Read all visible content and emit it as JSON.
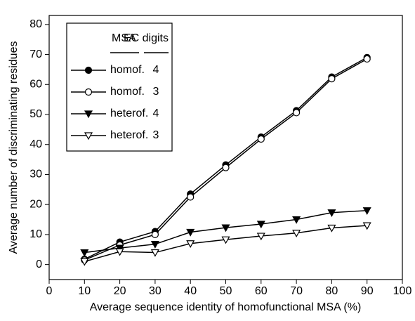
{
  "chart_data": {
    "type": "line",
    "x_label": "Average sequence identity of homofunctional MSA (%)",
    "y_label": "Average number of discriminating residues",
    "x": [
      10,
      20,
      30,
      40,
      50,
      60,
      70,
      80,
      90
    ],
    "legend_headers": [
      "MSA",
      "EC digits"
    ],
    "series": [
      {
        "name": "homof.",
        "ec_digits": 4,
        "color": "#000000",
        "marker": "circle",
        "filled": true,
        "values": [
          1.8,
          7.5,
          11,
          23.5,
          33.2,
          42.5,
          51.3,
          62.5,
          69
        ]
      },
      {
        "name": "homof.",
        "ec_digits": 3,
        "color": "#000000",
        "marker": "circle",
        "filled": false,
        "values": [
          1.5,
          6.5,
          10,
          22.5,
          32.3,
          41.8,
          50.6,
          61.9,
          68.5
        ]
      },
      {
        "name": "heterof.",
        "ec_digits": 4,
        "color": "#000000",
        "marker": "triangle-down",
        "filled": true,
        "values": [
          4,
          5.5,
          6.8,
          10.8,
          12.3,
          13.5,
          15,
          17.3,
          18
        ]
      },
      {
        "name": "heterof.",
        "ec_digits": 3,
        "color": "#000000",
        "marker": "triangle-down",
        "filled": false,
        "values": [
          1,
          4.3,
          4,
          7,
          8.3,
          9.5,
          10.5,
          12.2,
          13
        ]
      }
    ],
    "xlim": [
      0,
      100
    ],
    "xticks": [
      0,
      10,
      20,
      30,
      40,
      50,
      60,
      70,
      80,
      90,
      100
    ],
    "ylim": [
      -5,
      83
    ],
    "yticks": [
      0,
      10,
      20,
      30,
      40,
      50,
      60,
      70,
      80
    ],
    "grid": false,
    "legend_position": "upper-left"
  }
}
